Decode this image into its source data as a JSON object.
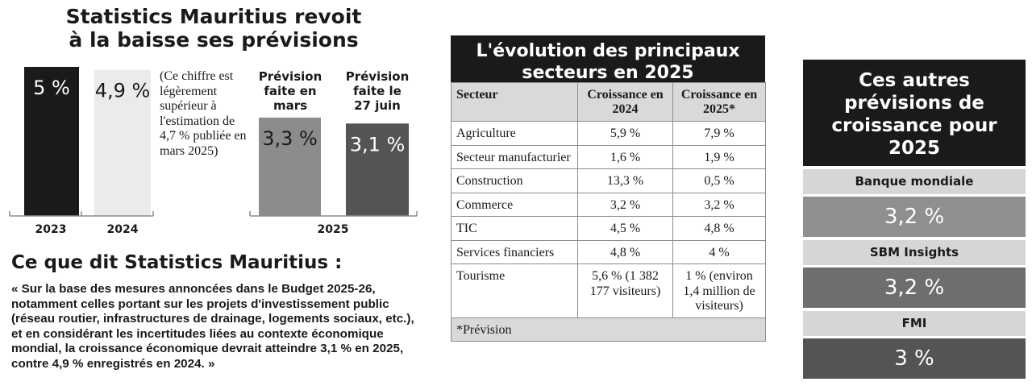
{
  "left": {
    "title_line1": "Statistics Mauritius revoit",
    "title_line2": "à la baisse ses prévisions",
    "note": "(Ce chiffre est légèrement supérieur à l'estimation de 4,7 % publiée en mars 2025)",
    "section_title": "Ce que dit Statistics Mauritius :",
    "quote": "« Sur la base des mesures annoncées dans le Budget 2025-26, notamment celles portant sur les projets d'investissement public (réseau routier, infrastructures de drainage, logements sociaux, etc.), et en considérant les incertitudes liées au contexte économique mondial, la croissance économique devrait atteindre 3,1 % en 2025, contre 4,9 % enregistrés en 2024. »"
  },
  "colors": {
    "dark": "#1a1a1a",
    "light_bar": "#ebebeb",
    "mid_bar": "#8c8c8c",
    "dark_gray_bar": "#545454",
    "table_header": "#d9d9d9"
  },
  "chart_data": {
    "type": "bar",
    "title": "Statistics Mauritius revoit à la baisse ses prévisions",
    "unit": "%",
    "ylim": [
      0,
      5
    ],
    "bars": [
      {
        "id": "y2023",
        "value": 5.0,
        "label": "5 %",
        "group": "2023",
        "header": ""
      },
      {
        "id": "y2024",
        "value": 4.9,
        "label": "4,9 %",
        "group": "2024",
        "header": ""
      },
      {
        "id": "mars",
        "value": 3.3,
        "label": "3,3 %",
        "group": "2025",
        "header": "Prévision faite en mars"
      },
      {
        "id": "juin",
        "value": 3.1,
        "label": "3,1 %",
        "group": "2025",
        "header": "Prévision faite le 27 juin"
      }
    ],
    "x_groups": [
      "2023",
      "2024",
      "2025"
    ],
    "header_mars_lines": [
      "Prévision",
      "faite en",
      "mars"
    ],
    "header_juin_lines": [
      "Prévision",
      "faite le",
      "27 juin"
    ]
  },
  "table": {
    "title_line1": "L'évolution des principaux",
    "title_line2": "secteurs en 2025",
    "headers": [
      "Secteur",
      "Croissance en 2024",
      "Croissance en 2025*"
    ],
    "rows": [
      [
        "Agriculture",
        "5,9 %",
        "7,9 %"
      ],
      [
        "Secteur manufacturier",
        "1,6 %",
        "1,9 %"
      ],
      [
        "Construction",
        "13,3 %",
        "0,5 %"
      ],
      [
        "Commerce",
        "3,2 %",
        "3,2 %"
      ],
      [
        "TIC",
        "4,5 %",
        "4,8 %"
      ],
      [
        "Services financiers",
        "4,8 %",
        "4 %"
      ],
      [
        "Tourisme",
        "5,6 % (1 382 177 visiteurs)",
        "1 % (environ 1,4 million de visiteurs)"
      ]
    ],
    "footnote": "*Prévision"
  },
  "right": {
    "title": "Ces autres prévisions de croissance pour 2025",
    "items": [
      {
        "label": "Banque mondiale",
        "value": "3,2 %",
        "color": "#8f8f8f"
      },
      {
        "label": "SBM Insights",
        "value": "3,2 %",
        "color": "#6e6e6e"
      },
      {
        "label": "FMI",
        "value": "3 %",
        "color": "#545454"
      }
    ]
  }
}
